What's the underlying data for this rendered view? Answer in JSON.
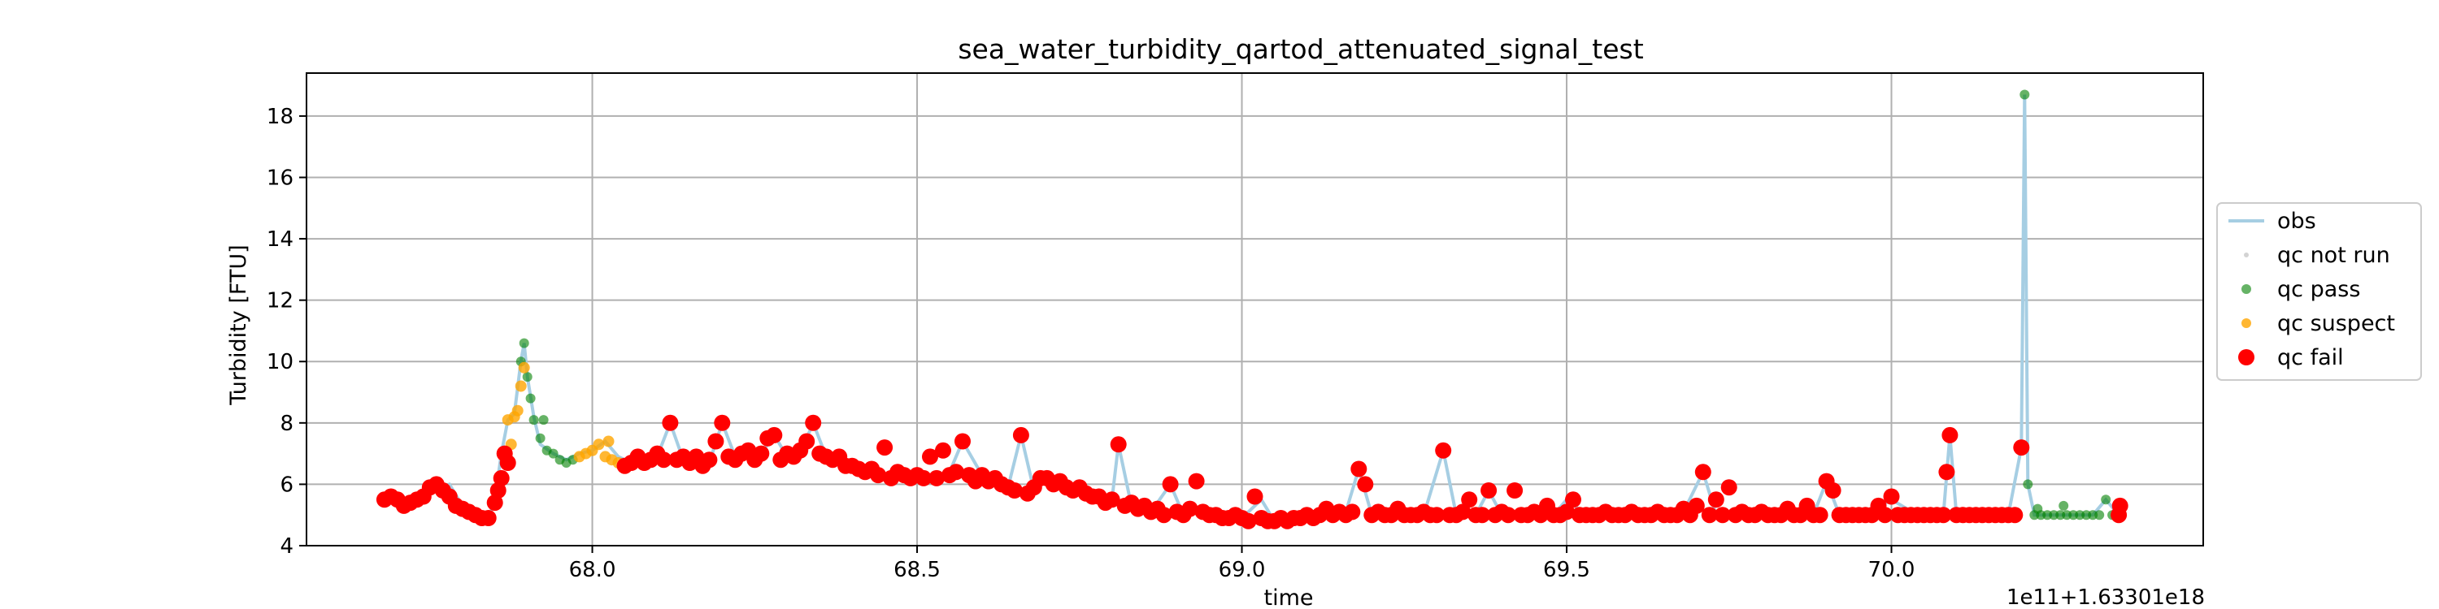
{
  "chart_data": {
    "type": "scatter",
    "title": "sea_water_turbidity_qartod_attenuated_signal_test",
    "xlabel": "time",
    "ylabel": "Turbidity [FTU]",
    "x_offset_label": "1e11+1.63301e18",
    "xlim": [
      67.56,
      70.48
    ],
    "ylim": [
      4,
      19.4
    ],
    "x_ticks": [
      68.0,
      68.5,
      69.0,
      69.5,
      70.0
    ],
    "x_tick_labels": [
      "68.0",
      "68.5",
      "69.0",
      "69.5",
      "70.0"
    ],
    "y_ticks": [
      4,
      6,
      8,
      10,
      12,
      14,
      16,
      18
    ],
    "y_tick_labels": [
      "4",
      "6",
      "8",
      "10",
      "12",
      "14",
      "16",
      "18"
    ],
    "grid": true,
    "legend_placement": "center-right outside",
    "legend": [
      {
        "label": "obs",
        "kind": "line",
        "color": "#a6cee3"
      },
      {
        "label": "qc not run",
        "kind": "dot",
        "color": "#d3d3d3"
      },
      {
        "label": "qc pass",
        "kind": "dot",
        "color": "#008000"
      },
      {
        "label": "qc suspect",
        "kind": "dot",
        "color": "#ffa500"
      },
      {
        "label": "qc fail",
        "kind": "dot",
        "color": "#ff0000"
      }
    ],
    "colors": {
      "obs": "#a6cee3",
      "qc_not_run": "#d3d3d3",
      "qc_pass": "#008000",
      "qc_suspect": "#ffa500",
      "qc_fail": "#ff0000"
    },
    "obs": [
      [
        67.68,
        5.5
      ],
      [
        67.71,
        5.4
      ],
      [
        67.74,
        5.6
      ],
      [
        67.76,
        5.9
      ],
      [
        67.78,
        6.0
      ],
      [
        67.8,
        5.3
      ],
      [
        67.82,
        5.0
      ],
      [
        67.84,
        4.9
      ],
      [
        67.85,
        5.5
      ],
      [
        67.86,
        7.0
      ],
      [
        67.87,
        8.1
      ],
      [
        67.88,
        8.3
      ],
      [
        67.89,
        10.0
      ],
      [
        67.895,
        10.6
      ],
      [
        67.9,
        9.5
      ],
      [
        67.91,
        8.2
      ],
      [
        67.92,
        7.3
      ],
      [
        67.94,
        7.0
      ],
      [
        67.96,
        6.8
      ],
      [
        67.98,
        7.0
      ],
      [
        68.0,
        7.1
      ],
      [
        68.02,
        7.4
      ],
      [
        68.04,
        6.9
      ],
      [
        68.06,
        6.7
      ],
      [
        68.08,
        6.8
      ],
      [
        68.1,
        6.9
      ],
      [
        68.12,
        8.0
      ],
      [
        68.14,
        6.8
      ],
      [
        68.16,
        6.9
      ],
      [
        68.18,
        6.7
      ],
      [
        68.2,
        8.0
      ],
      [
        68.22,
        6.9
      ],
      [
        68.24,
        7.0
      ],
      [
        68.26,
        7.0
      ],
      [
        68.28,
        7.6
      ],
      [
        68.3,
        6.9
      ],
      [
        68.32,
        7.0
      ],
      [
        68.34,
        8.0
      ],
      [
        68.36,
        6.9
      ],
      [
        68.38,
        6.8
      ],
      [
        68.4,
        6.6
      ],
      [
        68.42,
        6.4
      ],
      [
        68.45,
        6.3
      ],
      [
        68.48,
        6.2
      ],
      [
        68.5,
        6.3
      ],
      [
        68.52,
        6.2
      ],
      [
        68.55,
        6.4
      ],
      [
        68.57,
        7.4
      ],
      [
        68.6,
        6.3
      ],
      [
        68.62,
        6.0
      ],
      [
        68.64,
        5.9
      ],
      [
        68.66,
        7.6
      ],
      [
        68.68,
        5.8
      ],
      [
        68.7,
        6.2
      ],
      [
        68.72,
        6.1
      ],
      [
        68.74,
        5.9
      ],
      [
        68.76,
        5.8
      ],
      [
        68.78,
        5.6
      ],
      [
        68.8,
        5.5
      ],
      [
        68.81,
        7.3
      ],
      [
        68.83,
        5.3
      ],
      [
        68.86,
        5.1
      ],
      [
        68.89,
        6.0
      ],
      [
        68.91,
        5.0
      ],
      [
        68.93,
        5.2
      ],
      [
        68.95,
        5.0
      ],
      [
        68.98,
        4.9
      ],
      [
        69.0,
        4.9
      ],
      [
        69.03,
        5.5
      ],
      [
        69.05,
        4.8
      ],
      [
        69.08,
        4.9
      ],
      [
        69.1,
        5.0
      ],
      [
        69.13,
        5.0
      ],
      [
        69.16,
        5.1
      ],
      [
        69.18,
        6.5
      ],
      [
        69.2,
        5.0
      ],
      [
        69.22,
        5.0
      ],
      [
        69.25,
        5.0
      ],
      [
        69.28,
        5.0
      ],
      [
        69.31,
        7.1
      ],
      [
        69.33,
        5.0
      ],
      [
        69.36,
        5.0
      ],
      [
        69.38,
        5.8
      ],
      [
        69.4,
        5.0
      ],
      [
        69.43,
        5.0
      ],
      [
        69.46,
        5.1
      ],
      [
        69.48,
        5.0
      ],
      [
        69.5,
        5.5
      ],
      [
        69.53,
        5.0
      ],
      [
        69.56,
        5.0
      ],
      [
        69.6,
        5.0
      ],
      [
        69.64,
        5.0
      ],
      [
        69.68,
        5.1
      ],
      [
        69.71,
        6.4
      ],
      [
        69.73,
        5.0
      ],
      [
        69.76,
        5.0
      ],
      [
        69.8,
        5.0
      ],
      [
        69.84,
        5.0
      ],
      [
        69.88,
        5.0
      ],
      [
        69.9,
        6.1
      ],
      [
        69.92,
        5.0
      ],
      [
        69.96,
        5.0
      ],
      [
        70.0,
        5.5
      ],
      [
        70.04,
        5.0
      ],
      [
        70.08,
        5.0
      ],
      [
        70.09,
        7.6
      ],
      [
        70.1,
        5.0
      ],
      [
        70.14,
        5.0
      ],
      [
        70.18,
        5.0
      ],
      [
        70.2,
        7.2
      ],
      [
        70.205,
        18.7
      ],
      [
        70.21,
        6.0
      ],
      [
        70.22,
        5.0
      ],
      [
        70.25,
        5.0
      ],
      [
        70.28,
        5.0
      ],
      [
        70.31,
        5.0
      ],
      [
        70.33,
        5.5
      ],
      [
        70.35,
        5.0
      ]
    ],
    "qc_pass": [
      [
        67.89,
        10.0
      ],
      [
        67.895,
        10.6
      ],
      [
        67.9,
        9.5
      ],
      [
        67.905,
        8.8
      ],
      [
        67.91,
        8.1
      ],
      [
        67.92,
        7.5
      ],
      [
        67.925,
        8.1
      ],
      [
        67.93,
        7.1
      ],
      [
        67.94,
        7.0
      ],
      [
        67.95,
        6.8
      ],
      [
        67.96,
        6.7
      ],
      [
        67.97,
        6.8
      ],
      [
        70.205,
        18.7
      ],
      [
        70.21,
        6.0
      ],
      [
        70.22,
        5.0
      ],
      [
        70.225,
        5.2
      ],
      [
        70.23,
        5.0
      ],
      [
        70.24,
        5.0
      ],
      [
        70.25,
        5.0
      ],
      [
        70.26,
        5.0
      ],
      [
        70.265,
        5.3
      ],
      [
        70.27,
        5.0
      ],
      [
        70.28,
        5.0
      ],
      [
        70.29,
        5.0
      ],
      [
        70.3,
        5.0
      ],
      [
        70.31,
        5.0
      ],
      [
        70.32,
        5.0
      ],
      [
        70.33,
        5.5
      ],
      [
        70.34,
        5.0
      ]
    ],
    "qc_suspect": [
      [
        67.87,
        8.1
      ],
      [
        67.875,
        7.3
      ],
      [
        67.88,
        8.2
      ],
      [
        67.885,
        8.4
      ],
      [
        67.89,
        9.2
      ],
      [
        67.895,
        9.8
      ],
      [
        67.98,
        6.9
      ],
      [
        67.99,
        7.0
      ],
      [
        68.0,
        7.1
      ],
      [
        68.01,
        7.3
      ],
      [
        68.02,
        6.9
      ],
      [
        68.025,
        7.4
      ],
      [
        68.03,
        6.8
      ],
      [
        68.04,
        6.7
      ]
    ],
    "qc_fail": [
      [
        67.68,
        5.5
      ],
      [
        67.69,
        5.6
      ],
      [
        67.7,
        5.5
      ],
      [
        67.71,
        5.3
      ],
      [
        67.72,
        5.4
      ],
      [
        67.73,
        5.5
      ],
      [
        67.74,
        5.6
      ],
      [
        67.75,
        5.9
      ],
      [
        67.76,
        6.0
      ],
      [
        67.77,
        5.8
      ],
      [
        67.78,
        5.6
      ],
      [
        67.79,
        5.3
      ],
      [
        67.8,
        5.2
      ],
      [
        67.81,
        5.1
      ],
      [
        67.82,
        5.0
      ],
      [
        67.83,
        4.9
      ],
      [
        67.84,
        4.9
      ],
      [
        67.85,
        5.4
      ],
      [
        67.855,
        5.8
      ],
      [
        67.86,
        6.2
      ],
      [
        67.865,
        7.0
      ],
      [
        67.87,
        6.7
      ],
      [
        68.05,
        6.6
      ],
      [
        68.06,
        6.7
      ],
      [
        68.07,
        6.9
      ],
      [
        68.08,
        6.7
      ],
      [
        68.09,
        6.8
      ],
      [
        68.1,
        7.0
      ],
      [
        68.11,
        6.8
      ],
      [
        68.12,
        8.0
      ],
      [
        68.13,
        6.8
      ],
      [
        68.14,
        6.9
      ],
      [
        68.15,
        6.7
      ],
      [
        68.16,
        6.9
      ],
      [
        68.17,
        6.6
      ],
      [
        68.18,
        6.8
      ],
      [
        68.19,
        7.4
      ],
      [
        68.2,
        8.0
      ],
      [
        68.21,
        6.9
      ],
      [
        68.22,
        6.8
      ],
      [
        68.23,
        7.0
      ],
      [
        68.24,
        7.1
      ],
      [
        68.25,
        6.8
      ],
      [
        68.26,
        7.0
      ],
      [
        68.27,
        7.5
      ],
      [
        68.28,
        7.6
      ],
      [
        68.29,
        6.8
      ],
      [
        68.3,
        7.0
      ],
      [
        68.31,
        6.9
      ],
      [
        68.32,
        7.1
      ],
      [
        68.33,
        7.4
      ],
      [
        68.34,
        8.0
      ],
      [
        68.35,
        7.0
      ],
      [
        68.36,
        6.9
      ],
      [
        68.37,
        6.8
      ],
      [
        68.38,
        6.9
      ],
      [
        68.39,
        6.6
      ],
      [
        68.4,
        6.6
      ],
      [
        68.41,
        6.5
      ],
      [
        68.42,
        6.4
      ],
      [
        68.43,
        6.5
      ],
      [
        68.44,
        6.3
      ],
      [
        68.45,
        7.2
      ],
      [
        68.46,
        6.2
      ],
      [
        68.47,
        6.4
      ],
      [
        68.48,
        6.3
      ],
      [
        68.49,
        6.2
      ],
      [
        68.5,
        6.3
      ],
      [
        68.51,
        6.2
      ],
      [
        68.52,
        6.9
      ],
      [
        68.53,
        6.2
      ],
      [
        68.54,
        7.1
      ],
      [
        68.55,
        6.3
      ],
      [
        68.56,
        6.4
      ],
      [
        68.57,
        7.4
      ],
      [
        68.58,
        6.3
      ],
      [
        68.59,
        6.1
      ],
      [
        68.6,
        6.3
      ],
      [
        68.61,
        6.1
      ],
      [
        68.62,
        6.2
      ],
      [
        68.63,
        6.0
      ],
      [
        68.64,
        5.9
      ],
      [
        68.65,
        5.8
      ],
      [
        68.66,
        7.6
      ],
      [
        68.67,
        5.7
      ],
      [
        68.68,
        5.9
      ],
      [
        68.69,
        6.2
      ],
      [
        68.7,
        6.2
      ],
      [
        68.71,
        6.0
      ],
      [
        68.72,
        6.1
      ],
      [
        68.73,
        5.9
      ],
      [
        68.74,
        5.8
      ],
      [
        68.75,
        5.9
      ],
      [
        68.76,
        5.7
      ],
      [
        68.77,
        5.6
      ],
      [
        68.78,
        5.6
      ],
      [
        68.79,
        5.4
      ],
      [
        68.8,
        5.5
      ],
      [
        68.81,
        7.3
      ],
      [
        68.82,
        5.3
      ],
      [
        68.83,
        5.4
      ],
      [
        68.84,
        5.2
      ],
      [
        68.85,
        5.3
      ],
      [
        68.86,
        5.1
      ],
      [
        68.87,
        5.2
      ],
      [
        68.88,
        5.0
      ],
      [
        68.89,
        6.0
      ],
      [
        68.9,
        5.1
      ],
      [
        68.91,
        5.0
      ],
      [
        68.92,
        5.2
      ],
      [
        68.93,
        6.1
      ],
      [
        68.94,
        5.1
      ],
      [
        68.95,
        5.0
      ],
      [
        68.96,
        5.0
      ],
      [
        68.97,
        4.9
      ],
      [
        68.98,
        4.9
      ],
      [
        68.99,
        5.0
      ],
      [
        69.0,
        4.9
      ],
      [
        69.01,
        4.8
      ],
      [
        69.02,
        5.6
      ],
      [
        69.03,
        4.9
      ],
      [
        69.04,
        4.8
      ],
      [
        69.05,
        4.8
      ],
      [
        69.06,
        4.9
      ],
      [
        69.07,
        4.8
      ],
      [
        69.08,
        4.9
      ],
      [
        69.09,
        4.9
      ],
      [
        69.1,
        5.0
      ],
      [
        69.11,
        4.9
      ],
      [
        69.12,
        5.0
      ],
      [
        69.13,
        5.2
      ],
      [
        69.14,
        5.0
      ],
      [
        69.15,
        5.1
      ],
      [
        69.16,
        5.0
      ],
      [
        69.17,
        5.1
      ],
      [
        69.18,
        6.5
      ],
      [
        69.19,
        6.0
      ],
      [
        69.2,
        5.0
      ],
      [
        69.21,
        5.1
      ],
      [
        69.22,
        5.0
      ],
      [
        69.23,
        5.0
      ],
      [
        69.24,
        5.2
      ],
      [
        69.25,
        5.0
      ],
      [
        69.26,
        5.0
      ],
      [
        69.27,
        5.0
      ],
      [
        69.28,
        5.1
      ],
      [
        69.29,
        5.0
      ],
      [
        69.3,
        5.0
      ],
      [
        69.31,
        7.1
      ],
      [
        69.32,
        5.0
      ],
      [
        69.33,
        5.0
      ],
      [
        69.34,
        5.1
      ],
      [
        69.35,
        5.5
      ],
      [
        69.36,
        5.0
      ],
      [
        69.37,
        5.0
      ],
      [
        69.38,
        5.8
      ],
      [
        69.39,
        5.0
      ],
      [
        69.4,
        5.1
      ],
      [
        69.41,
        5.0
      ],
      [
        69.42,
        5.8
      ],
      [
        69.43,
        5.0
      ],
      [
        69.44,
        5.0
      ],
      [
        69.45,
        5.1
      ],
      [
        69.46,
        5.0
      ],
      [
        69.47,
        5.3
      ],
      [
        69.48,
        5.0
      ],
      [
        69.49,
        5.0
      ],
      [
        69.5,
        5.1
      ],
      [
        69.51,
        5.5
      ],
      [
        69.52,
        5.0
      ],
      [
        69.53,
        5.0
      ],
      [
        69.54,
        5.0
      ],
      [
        69.55,
        5.0
      ],
      [
        69.56,
        5.1
      ],
      [
        69.57,
        5.0
      ],
      [
        69.58,
        5.0
      ],
      [
        69.59,
        5.0
      ],
      [
        69.6,
        5.1
      ],
      [
        69.61,
        5.0
      ],
      [
        69.62,
        5.0
      ],
      [
        69.63,
        5.0
      ],
      [
        69.64,
        5.1
      ],
      [
        69.65,
        5.0
      ],
      [
        69.66,
        5.0
      ],
      [
        69.67,
        5.0
      ],
      [
        69.68,
        5.2
      ],
      [
        69.69,
        5.0
      ],
      [
        69.7,
        5.3
      ],
      [
        69.71,
        6.4
      ],
      [
        69.72,
        5.0
      ],
      [
        69.73,
        5.5
      ],
      [
        69.74,
        5.0
      ],
      [
        69.75,
        5.9
      ],
      [
        69.76,
        5.0
      ],
      [
        69.77,
        5.1
      ],
      [
        69.78,
        5.0
      ],
      [
        69.79,
        5.0
      ],
      [
        69.8,
        5.1
      ],
      [
        69.81,
        5.0
      ],
      [
        69.82,
        5.0
      ],
      [
        69.83,
        5.0
      ],
      [
        69.84,
        5.2
      ],
      [
        69.85,
        5.0
      ],
      [
        69.86,
        5.0
      ],
      [
        69.87,
        5.3
      ],
      [
        69.88,
        5.0
      ],
      [
        69.89,
        5.0
      ],
      [
        69.9,
        6.1
      ],
      [
        69.91,
        5.8
      ],
      [
        69.92,
        5.0
      ],
      [
        69.93,
        5.0
      ],
      [
        69.94,
        5.0
      ],
      [
        69.95,
        5.0
      ],
      [
        69.96,
        5.0
      ],
      [
        69.97,
        5.0
      ],
      [
        69.98,
        5.3
      ],
      [
        69.99,
        5.0
      ],
      [
        70.0,
        5.6
      ],
      [
        70.01,
        5.0
      ],
      [
        70.02,
        5.0
      ],
      [
        70.03,
        5.0
      ],
      [
        70.04,
        5.0
      ],
      [
        70.05,
        5.0
      ],
      [
        70.06,
        5.0
      ],
      [
        70.07,
        5.0
      ],
      [
        70.08,
        5.0
      ],
      [
        70.085,
        6.4
      ],
      [
        70.09,
        7.6
      ],
      [
        70.1,
        5.0
      ],
      [
        70.11,
        5.0
      ],
      [
        70.12,
        5.0
      ],
      [
        70.13,
        5.0
      ],
      [
        70.14,
        5.0
      ],
      [
        70.15,
        5.0
      ],
      [
        70.16,
        5.0
      ],
      [
        70.17,
        5.0
      ],
      [
        70.18,
        5.0
      ],
      [
        70.19,
        5.0
      ],
      [
        70.2,
        7.2
      ],
      [
        70.35,
        5.0
      ],
      [
        70.352,
        5.3
      ]
    ]
  }
}
